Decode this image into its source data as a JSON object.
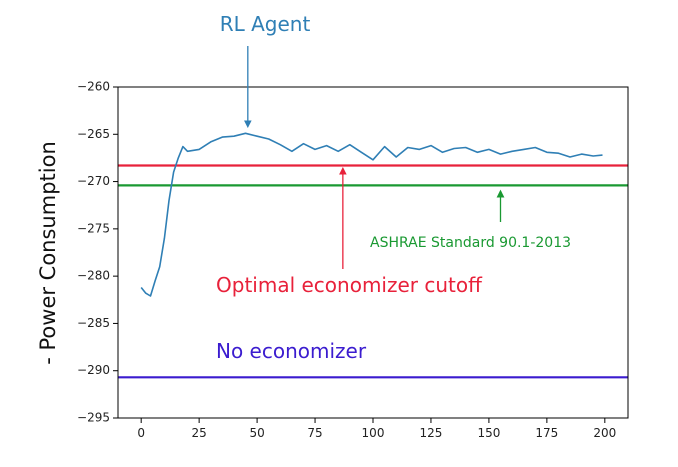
{
  "chart_data": {
    "type": "line",
    "title": "",
    "xlabel": "",
    "ylabel": "- Power Consumption",
    "xlim": [
      -10,
      210
    ],
    "ylim": [
      -295,
      -260
    ],
    "xticks": [
      0,
      25,
      50,
      75,
      100,
      125,
      150,
      175,
      200
    ],
    "yticks": [
      -260,
      -265,
      -270,
      -275,
      -280,
      -285,
      -290,
      -295
    ],
    "xtick_labels": [
      "0",
      "25",
      "50",
      "75",
      "100",
      "125",
      "150",
      "175",
      "200"
    ],
    "ytick_labels": [
      "−260",
      "−265",
      "−270",
      "−275",
      "−280",
      "−285",
      "−290",
      "−295"
    ],
    "grid": false,
    "series": [
      {
        "name": "RL Agent",
        "color": "#2f7fb5",
        "x": [
          0,
          2,
          4,
          6,
          8,
          10,
          12,
          14,
          16,
          18,
          20,
          25,
          30,
          35,
          40,
          45,
          50,
          55,
          60,
          65,
          70,
          75,
          80,
          85,
          90,
          95,
          100,
          105,
          110,
          115,
          120,
          125,
          130,
          135,
          140,
          145,
          150,
          155,
          160,
          165,
          170,
          175,
          180,
          185,
          190,
          195,
          199
        ],
        "y": [
          -281.2,
          -281.8,
          -282.1,
          -280.5,
          -279.0,
          -276.0,
          -272.0,
          -269.0,
          -267.5,
          -266.3,
          -266.8,
          -266.6,
          -265.8,
          -265.3,
          -265.2,
          -264.9,
          -265.2,
          -265.5,
          -266.1,
          -266.8,
          -266.0,
          -266.6,
          -266.2,
          -266.8,
          -266.1,
          -266.9,
          -267.7,
          -266.3,
          -267.4,
          -266.4,
          -266.6,
          -266.2,
          -266.9,
          -266.5,
          -266.4,
          -266.9,
          -266.6,
          -267.1,
          -266.8,
          -266.6,
          -266.4,
          -266.9,
          -267.0,
          -267.4,
          -267.1,
          -267.3,
          -267.2
        ]
      }
    ],
    "hlines": [
      {
        "name": "Optimal economizer cutoff",
        "y": -268.3,
        "color": "#e8213a"
      },
      {
        "name": "ASHRAE Standard 90.1-2013",
        "y": -270.4,
        "color": "#1a9932"
      },
      {
        "name": "No economizer",
        "y": -290.7,
        "color": "#3b1ccf"
      }
    ],
    "annotations": [
      {
        "text": "RL Agent",
        "color": "#2f7fb5",
        "arrow_to": [
          46,
          -264.6
        ]
      },
      {
        "text": "Optimal economizer cutoff",
        "color": "#e8213a",
        "arrow_to": [
          87,
          -268.3
        ]
      },
      {
        "text": "ASHRAE Standard 90.1-2013",
        "color": "#1a9932",
        "arrow_to": [
          155,
          -270.6
        ]
      },
      {
        "text": "No economizer",
        "color": "#3b1ccf"
      }
    ]
  }
}
